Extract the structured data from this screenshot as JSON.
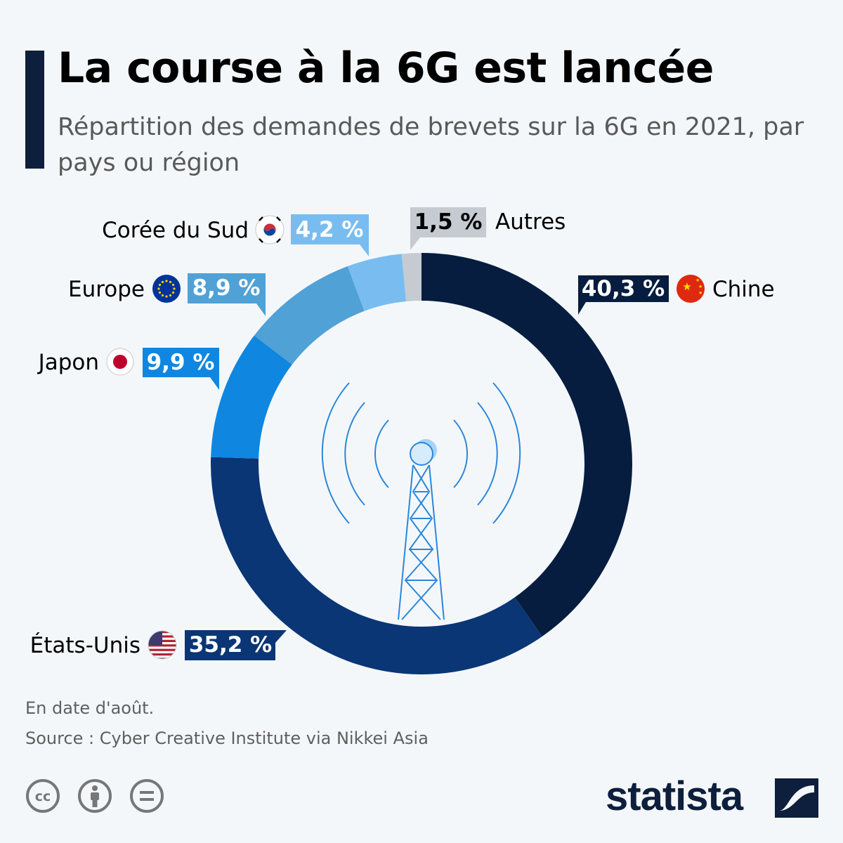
{
  "header": {
    "title": "La course à la 6G est lancée",
    "subtitle": "Répartition des demandes de brevets sur la 6G en 2021, par pays ou région"
  },
  "chart_data": {
    "type": "donut",
    "title": "La course à la 6G est lancée",
    "subtitle": "Répartition des demandes de brevets sur la 6G en 2021, par pays ou région",
    "segments": [
      {
        "name": "Chine",
        "value": 40.3,
        "label": "40,3 %",
        "color": "#061d3f",
        "flag": "china-flag-icon"
      },
      {
        "name": "États-Unis",
        "value": 35.2,
        "label": "35,2 %",
        "color": "#0a3675",
        "flag": "usa-flag-icon"
      },
      {
        "name": "Japon",
        "value": 9.9,
        "label": "9,9 %",
        "color": "#0f86e0",
        "flag": "japan-flag-icon"
      },
      {
        "name": "Europe",
        "value": 8.9,
        "label": "8,9 %",
        "color": "#4fa1d6",
        "flag": "eu-flag-icon"
      },
      {
        "name": "Corée du Sud",
        "value": 4.2,
        "label": "4,2 %",
        "color": "#79bdf0",
        "flag": "south-korea-flag-icon"
      },
      {
        "name": "Autres",
        "value": 1.5,
        "label": "1,5 %",
        "color": "#c6cbd1",
        "flag": null
      }
    ],
    "center_icon": "antenna-tower-icon"
  },
  "footer": {
    "note": "En date d'août.",
    "source": "Source : Cyber Creative Institute via Nikkei Asia",
    "license_icons": [
      "cc-icon",
      "attribution-icon",
      "no-derivatives-icon"
    ],
    "brand": "statista",
    "brand_color": "#0d1f3c"
  }
}
